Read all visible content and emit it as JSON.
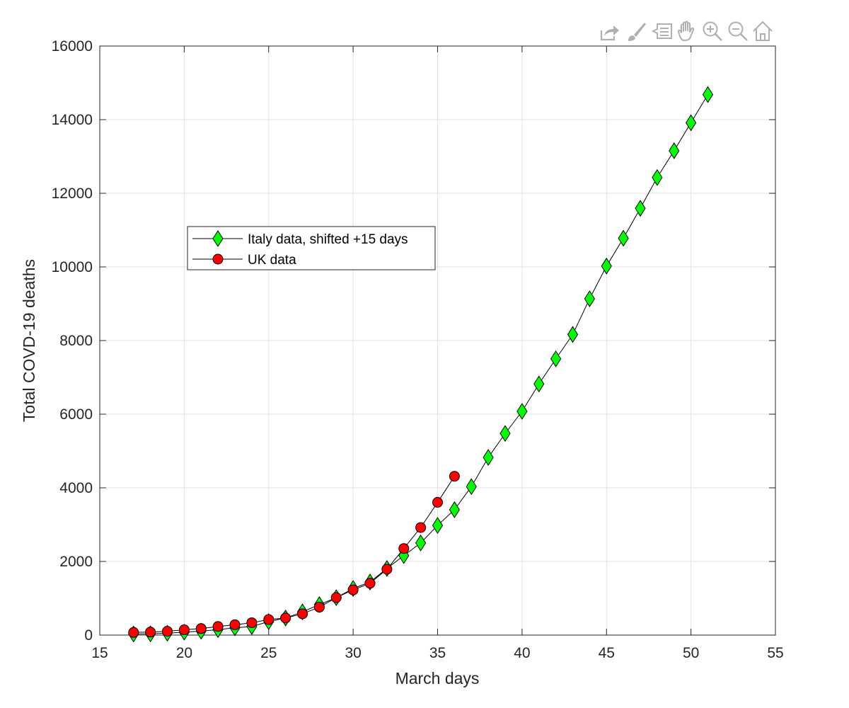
{
  "toolbar": {
    "icons": [
      "export-icon",
      "brush-icon",
      "data-tips-icon",
      "pan-hand-icon",
      "zoom-in-icon",
      "zoom-out-icon",
      "home-icon"
    ]
  },
  "chart_data": {
    "type": "line",
    "title": "",
    "xlabel": "March days",
    "ylabel": "Total COVD-19 deaths",
    "xlim": [
      15,
      55
    ],
    "ylim": [
      0,
      16000
    ],
    "xticks": [
      15,
      20,
      25,
      30,
      35,
      40,
      45,
      50,
      55
    ],
    "yticks": [
      0,
      2000,
      4000,
      6000,
      8000,
      10000,
      12000,
      14000,
      16000
    ],
    "grid": true,
    "legend_position": "upper-left",
    "series": [
      {
        "name": "Italy data, shifted +15 days",
        "marker": "diamond",
        "color": "#00ff00",
        "x": [
          17,
          18,
          19,
          20,
          21,
          22,
          23,
          24,
          25,
          26,
          27,
          28,
          29,
          30,
          31,
          32,
          33,
          34,
          35,
          36,
          37,
          38,
          39,
          40,
          41,
          42,
          43,
          44,
          45,
          46,
          47,
          48,
          49,
          50,
          51
        ],
        "y": [
          29,
          34,
          52,
          79,
          107,
          148,
          197,
          233,
          366,
          463,
          631,
          827,
          1016,
          1266,
          1441,
          1809,
          2158,
          2503,
          2978,
          3405,
          4032,
          4825,
          5476,
          6077,
          6820,
          7503,
          8165,
          9134,
          10023,
          10779,
          11591,
          12428,
          13155,
          13915,
          14681
        ]
      },
      {
        "name": "UK data",
        "marker": "circle",
        "color": "#ff0000",
        "x": [
          17,
          18,
          19,
          20,
          21,
          22,
          23,
          24,
          25,
          26,
          27,
          28,
          29,
          30,
          31,
          32,
          33,
          34,
          35,
          36
        ],
        "y": [
          71,
          81,
          104,
          144,
          177,
          233,
          281,
          335,
          422,
          465,
          578,
          759,
          1019,
          1228,
          1408,
          1789,
          2352,
          2921,
          3605,
          4313
        ]
      }
    ]
  }
}
